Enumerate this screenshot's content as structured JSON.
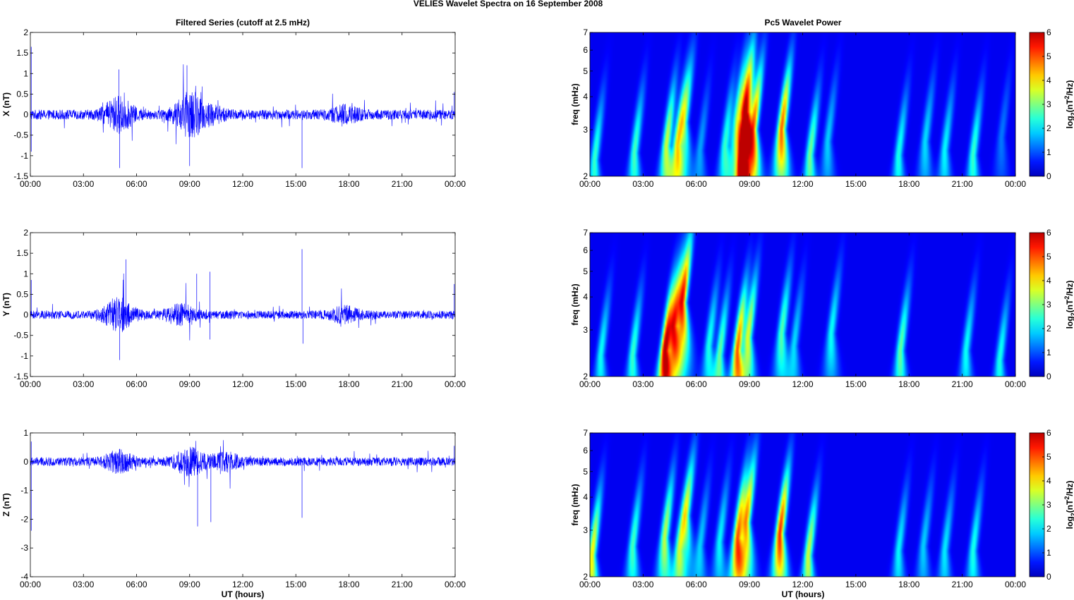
{
  "figure": {
    "suptitle": "VELIES Wavelet Spectra on 16 September 2008"
  },
  "colors": {
    "trace": "#0000ff",
    "spectrum_background": "#00008f",
    "colormap": "jet"
  },
  "chart_data": [
    {
      "id": "filtered-x",
      "type": "line",
      "title": "Filtered Series (cutoff at 2.5 mHz)",
      "xlabel": "",
      "ylabel": "X (nT)",
      "x_ticklabels": [
        "00:00",
        "03:00",
        "06:00",
        "09:00",
        "12:00",
        "15:00",
        "18:00",
        "21:00",
        "00:00"
      ],
      "xlim": [
        0,
        24
      ],
      "ylim": [
        -1.5,
        2
      ],
      "y_ticks": [
        -1.5,
        -1,
        -0.5,
        0,
        0.5,
        1,
        1.5,
        2
      ],
      "y_ticklabels": [
        "-1.5",
        "-1",
        "-0.5",
        "0",
        "0.5",
        "1",
        "1.5",
        "2"
      ],
      "series": [
        {
          "noise_level": 0.12,
          "activity": [
            [
              5.0,
              0.6
            ],
            [
              9.0,
              0.75
            ],
            [
              10.2,
              0.25
            ],
            [
              17.8,
              0.25
            ]
          ],
          "spikes": [
            [
              0.05,
              1.65
            ],
            [
              0.05,
              -0.9
            ],
            [
              5.0,
              1.1
            ],
            [
              5.05,
              -1.3
            ],
            [
              8.85,
              1.2
            ],
            [
              9.0,
              -1.25
            ],
            [
              15.35,
              -1.3
            ],
            [
              23.95,
              0.55
            ]
          ]
        }
      ]
    },
    {
      "id": "filtered-y",
      "type": "line",
      "title": "",
      "xlabel": "",
      "ylabel": "Y (nT)",
      "x_ticklabels": [
        "00:00",
        "03:00",
        "06:00",
        "09:00",
        "12:00",
        "15:00",
        "18:00",
        "21:00",
        "00:00"
      ],
      "xlim": [
        0,
        24
      ],
      "ylim": [
        -1.5,
        2
      ],
      "y_ticks": [
        -1.5,
        -1,
        -0.5,
        0,
        0.5,
        1,
        1.5,
        2
      ],
      "y_ticklabels": [
        "-1.5",
        "-1",
        "-0.5",
        "0",
        "0.5",
        "1",
        "1.5",
        "2"
      ],
      "series": [
        {
          "noise_level": 0.1,
          "activity": [
            [
              5.0,
              0.65
            ],
            [
              8.5,
              0.35
            ],
            [
              17.8,
              0.25
            ]
          ],
          "spikes": [
            [
              0.05,
              0.85
            ],
            [
              5.05,
              -1.1
            ],
            [
              5.4,
              1.35
            ],
            [
              9.4,
              1.0
            ],
            [
              10.15,
              1.05
            ],
            [
              10.15,
              -0.6
            ],
            [
              15.35,
              1.6
            ],
            [
              15.4,
              -0.7
            ],
            [
              23.95,
              0.75
            ]
          ]
        }
      ]
    },
    {
      "id": "filtered-z",
      "type": "line",
      "title": "",
      "xlabel": "UT (hours)",
      "ylabel": "Z (nT)",
      "x_ticklabels": [
        "00:00",
        "03:00",
        "06:00",
        "09:00",
        "12:00",
        "15:00",
        "18:00",
        "21:00",
        "00:00"
      ],
      "xlim": [
        0,
        24
      ],
      "ylim": [
        -4,
        1
      ],
      "y_ticks": [
        -4,
        -3,
        -2,
        -1,
        0,
        1
      ],
      "y_ticklabels": [
        "-4",
        "-3",
        "-2",
        "-1",
        "0",
        "1"
      ],
      "series": [
        {
          "noise_level": 0.15,
          "activity": [
            [
              5.0,
              0.5
            ],
            [
              9.0,
              0.7
            ],
            [
              11.0,
              0.4
            ]
          ],
          "spikes": [
            [
              0.05,
              -2.4
            ],
            [
              0.05,
              0.7
            ],
            [
              9.45,
              -2.25
            ],
            [
              10.2,
              -2.1
            ],
            [
              15.35,
              -1.95
            ],
            [
              23.95,
              0.55
            ]
          ]
        }
      ]
    },
    {
      "id": "wavelet-x",
      "type": "heatmap",
      "title": "Pc5 Wavelet Power",
      "xlabel": "",
      "ylabel": "freq (mHz)",
      "x_ticklabels": [
        "00:00",
        "03:00",
        "06:00",
        "09:00",
        "12:00",
        "15:00",
        "18:00",
        "21:00",
        "00:00"
      ],
      "xlim": [
        0,
        24
      ],
      "ylim": [
        2,
        7
      ],
      "y_scale": "log",
      "y_ticks": [
        2,
        3,
        4,
        5,
        6,
        7
      ],
      "y_ticklabels": [
        "2",
        "3",
        "4",
        "5",
        "6",
        "7"
      ],
      "colorbar": {
        "label": "log2(nT²/Hz)",
        "range": [
          0,
          6
        ],
        "ticks": [
          "0",
          "1",
          "2",
          "3",
          "4",
          "5",
          "6"
        ]
      },
      "blobs": [
        [
          0.25,
          2.3,
          2.2
        ],
        [
          2.5,
          2.45,
          2.3
        ],
        [
          4.3,
          2.6,
          3.2
        ],
        [
          4.9,
          2.6,
          3.1
        ],
        [
          5.3,
          3.2,
          2.6
        ],
        [
          6.2,
          2.5,
          1.2
        ],
        [
          7.6,
          2.6,
          2.1
        ],
        [
          8.3,
          3.3,
          2.7
        ],
        [
          8.6,
          2.3,
          5.2
        ],
        [
          8.7,
          3.5,
          5.0
        ],
        [
          9.2,
          3.0,
          4.5
        ],
        [
          10.8,
          3.0,
          4.6
        ],
        [
          12.4,
          2.4,
          2.6
        ],
        [
          13.4,
          2.7,
          1.5
        ],
        [
          17.4,
          2.4,
          2.0
        ],
        [
          18.9,
          2.7,
          1.6
        ],
        [
          20.0,
          2.5,
          1.8
        ],
        [
          21.6,
          2.4,
          2.2
        ],
        [
          23.2,
          2.8,
          0.9
        ]
      ]
    },
    {
      "id": "wavelet-y",
      "type": "heatmap",
      "title": "",
      "xlabel": "",
      "ylabel": "freq (mHz)",
      "x_ticklabels": [
        "00:00",
        "03:00",
        "06:00",
        "09:00",
        "12:00",
        "15:00",
        "18:00",
        "21:00",
        "00:00"
      ],
      "xlim": [
        0,
        24
      ],
      "ylim": [
        2,
        7
      ],
      "y_scale": "log",
      "y_ticks": [
        2,
        3,
        4,
        5,
        6,
        7
      ],
      "y_ticklabels": [
        "2",
        "3",
        "4",
        "5",
        "6",
        "7"
      ],
      "colorbar": {
        "label": "log2(nT²/Hz)",
        "range": [
          0,
          6
        ],
        "ticks": [
          "0",
          "1",
          "2",
          "3",
          "4",
          "5",
          "6"
        ]
      },
      "blobs": [
        [
          0.6,
          2.4,
          1.9
        ],
        [
          2.4,
          2.4,
          2.2
        ],
        [
          4.2,
          2.5,
          5.3
        ],
        [
          4.7,
          3.1,
          4.3
        ],
        [
          5.2,
          3.8,
          5.0
        ],
        [
          6.7,
          2.6,
          2.0
        ],
        [
          7.3,
          2.4,
          2.5
        ],
        [
          8.3,
          2.5,
          4.6
        ],
        [
          8.9,
          2.8,
          3.3
        ],
        [
          10.8,
          2.9,
          2.4
        ],
        [
          11.5,
          2.6,
          1.6
        ],
        [
          13.6,
          2.9,
          1.9
        ],
        [
          17.5,
          2.5,
          2.5
        ],
        [
          21.2,
          2.5,
          1.9
        ],
        [
          23.1,
          2.3,
          2.0
        ]
      ]
    },
    {
      "id": "wavelet-z",
      "type": "heatmap",
      "title": "",
      "xlabel": "UT (hours)",
      "ylabel": "freq (mHz)",
      "x_ticklabels": [
        "00:00",
        "03:00",
        "06:00",
        "09:00",
        "12:00",
        "15:00",
        "18:00",
        "21:00",
        "00:00"
      ],
      "xlim": [
        0,
        24
      ],
      "ylim": [
        2,
        7
      ],
      "y_scale": "log",
      "y_ticks": [
        2,
        3,
        4,
        5,
        6,
        7
      ],
      "y_ticklabels": [
        "2",
        "3",
        "4",
        "5",
        "6",
        "7"
      ],
      "colorbar": {
        "label": "log2(nT²/Hz)",
        "range": [
          0,
          6
        ],
        "ticks": [
          "0",
          "1",
          "2",
          "3",
          "4",
          "5",
          "6"
        ]
      },
      "blobs": [
        [
          0.1,
          2.4,
          3.6
        ],
        [
          2.4,
          2.6,
          2.3
        ],
        [
          4.2,
          2.8,
          3.1
        ],
        [
          5.0,
          2.5,
          2.3
        ],
        [
          5.4,
          3.4,
          2.7
        ],
        [
          6.2,
          2.6,
          1.5
        ],
        [
          7.3,
          2.7,
          1.8
        ],
        [
          8.3,
          2.8,
          4.4
        ],
        [
          8.8,
          3.2,
          4.2
        ],
        [
          10.7,
          2.9,
          5.0
        ],
        [
          12.3,
          2.4,
          3.2
        ],
        [
          17.4,
          2.5,
          1.8
        ],
        [
          18.8,
          2.6,
          1.5
        ],
        [
          20.0,
          2.5,
          1.7
        ],
        [
          21.6,
          2.5,
          2.0
        ]
      ]
    }
  ]
}
